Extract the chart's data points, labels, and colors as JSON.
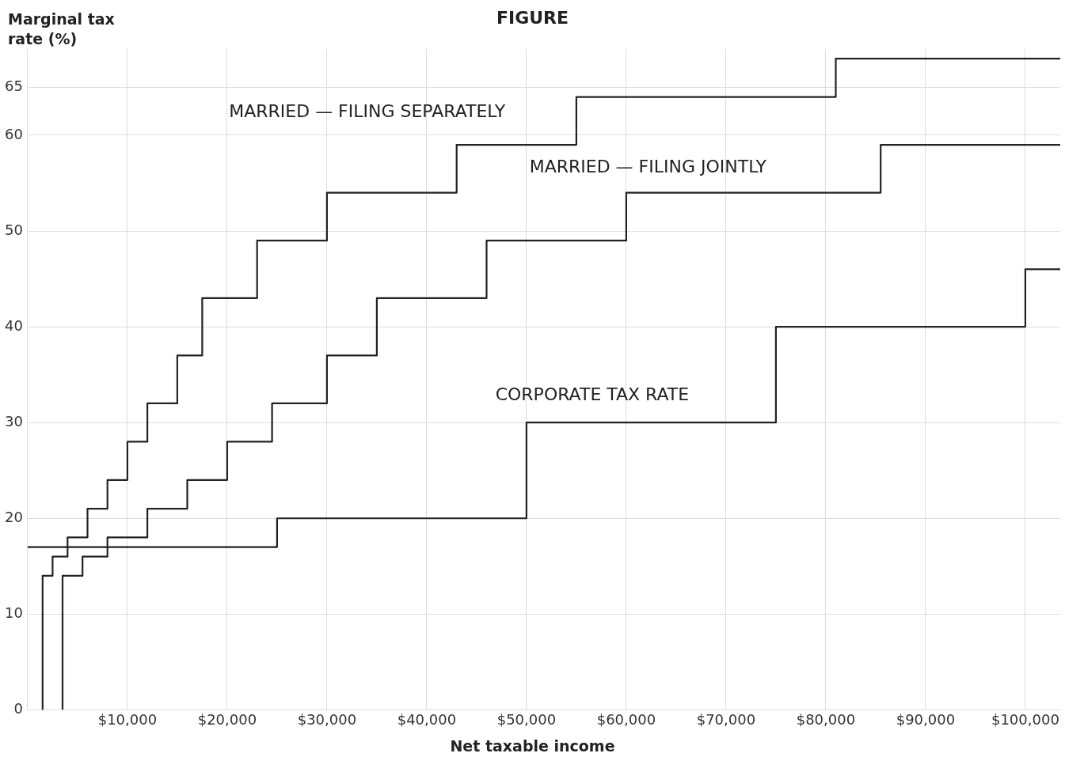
{
  "chart_data": {
    "type": "step",
    "title": "FIGURE",
    "xlabel": "Net taxable income",
    "ylabel": "Marginal tax rate (%)",
    "xlim": [
      0,
      103500
    ],
    "ylim": [
      0,
      69
    ],
    "xticks": [
      {
        "value": 10000,
        "label": "$10,000"
      },
      {
        "value": 20000,
        "label": "$20,000"
      },
      {
        "value": 30000,
        "label": "$30,000"
      },
      {
        "value": 40000,
        "label": "$40,000"
      },
      {
        "value": 50000,
        "label": "$50,000"
      },
      {
        "value": 60000,
        "label": "$60,000"
      },
      {
        "value": 70000,
        "label": "$70,000"
      },
      {
        "value": 80000,
        "label": "$80,000"
      },
      {
        "value": 90000,
        "label": "$90,000"
      },
      {
        "value": 100000,
        "label": "$100,000"
      }
    ],
    "yticks": [
      0,
      10,
      20,
      30,
      40,
      50,
      60,
      65
    ],
    "grid": true,
    "legend": false,
    "marker": "none",
    "line_style": "solid",
    "series": [
      {
        "name": "MARRIED — FILING SEPARATELY",
        "color": "#222222",
        "x": [
          1500,
          1500,
          2500,
          4000,
          6000,
          8000,
          10000,
          12000,
          15000,
          17500,
          23000,
          30000,
          43000,
          55000,
          81000,
          103500
        ],
        "values": [
          0,
          14,
          16,
          18,
          21,
          24,
          28,
          32,
          37,
          43,
          49,
          54,
          59,
          64,
          68,
          68
        ]
      },
      {
        "name": "MARRIED — FILING JOINTLY",
        "color": "#222222",
        "x": [
          3500,
          3500,
          5500,
          8000,
          12000,
          16000,
          20000,
          24500,
          30000,
          35000,
          46000,
          60000,
          85500,
          103500
        ],
        "values": [
          0,
          14,
          16,
          18,
          21,
          24,
          28,
          32,
          37,
          43,
          49,
          54,
          59,
          59
        ]
      },
      {
        "name": "CORPORATE TAX RATE",
        "color": "#222222",
        "x": [
          0,
          25000,
          50000,
          75000,
          100000,
          103500
        ],
        "values": [
          17,
          20,
          30,
          40,
          46,
          46
        ]
      }
    ]
  }
}
